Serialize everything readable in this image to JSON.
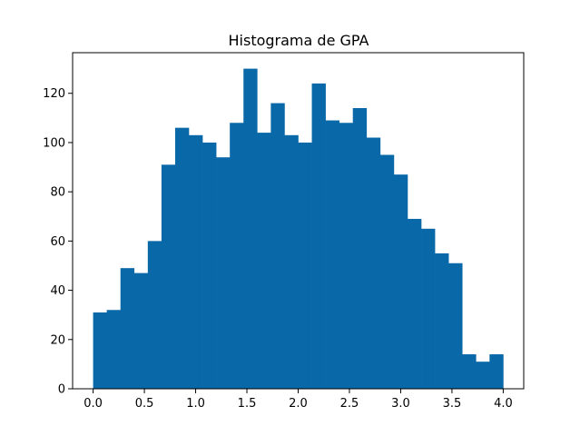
{
  "chart_data": {
    "type": "bar",
    "title": "Histograma de GPA",
    "xlabel": "",
    "ylabel": "",
    "bin_edges": [
      0.0,
      0.1333,
      0.2667,
      0.4,
      0.5333,
      0.6667,
      0.8,
      0.9333,
      1.0667,
      1.2,
      1.3333,
      1.4667,
      1.6,
      1.7333,
      1.8667,
      2.0,
      2.1333,
      2.2667,
      2.4,
      2.5333,
      2.6667,
      2.8,
      2.9333,
      3.0667,
      3.2,
      3.3333,
      3.4667,
      3.6,
      3.7333,
      3.8667,
      4.0
    ],
    "values": [
      31,
      32,
      49,
      47,
      60,
      91,
      106,
      103,
      100,
      94,
      108,
      130,
      104,
      116,
      103,
      100,
      124,
      109,
      108,
      114,
      102,
      95,
      87,
      69,
      65,
      55,
      51,
      14,
      11,
      14
    ],
    "xlim": [
      -0.2,
      4.2
    ],
    "ylim": [
      0,
      136.5
    ],
    "xticks": [
      "0.0",
      "0.5",
      "1.0",
      "1.5",
      "2.0",
      "2.5",
      "3.0",
      "3.5",
      "4.0"
    ],
    "yticks": [
      "0",
      "20",
      "40",
      "60",
      "80",
      "100",
      "120"
    ],
    "grid": false,
    "bar_color": "#0868a8"
  }
}
